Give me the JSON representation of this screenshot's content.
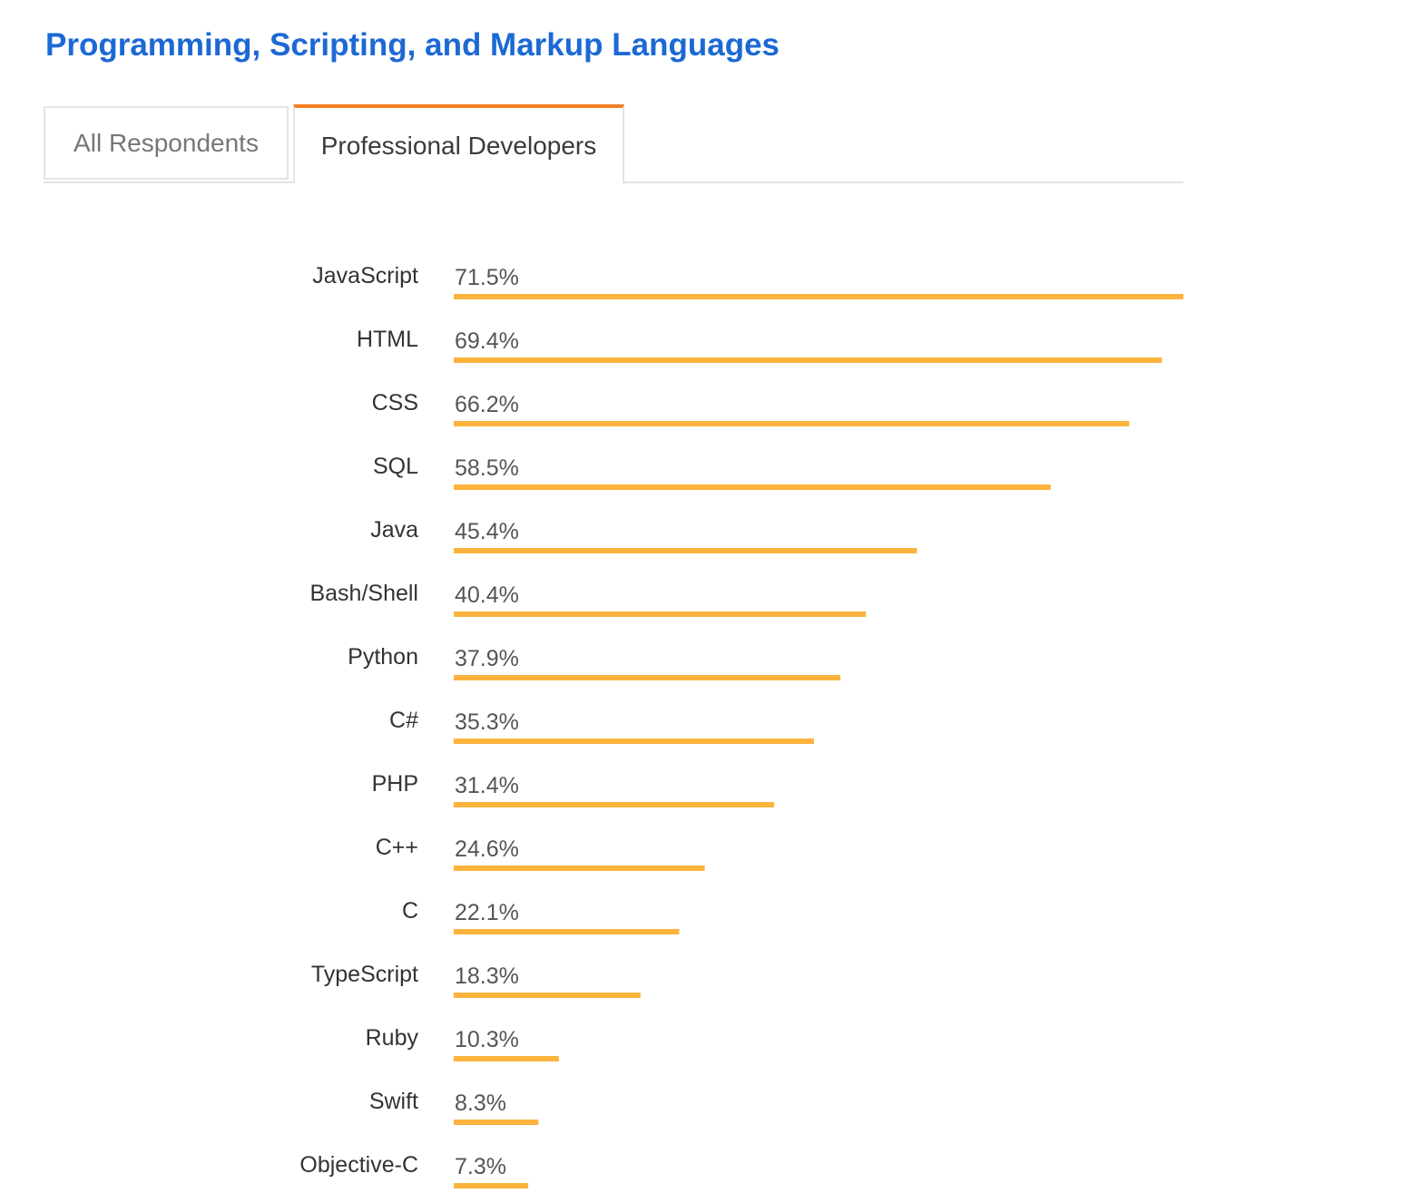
{
  "page": {
    "title": "Programming, Scripting, and Markup Languages"
  },
  "tabs": [
    {
      "label": "All Respondents",
      "active": false
    },
    {
      "label": "Professional Developers",
      "active": true
    }
  ],
  "colors": {
    "title": "#1c69d4",
    "bar": "#fbb33d",
    "tab_accent": "#f48024"
  },
  "chart_data": {
    "type": "bar",
    "orientation": "horizontal",
    "categories": [
      "JavaScript",
      "HTML",
      "CSS",
      "SQL",
      "Java",
      "Bash/Shell",
      "Python",
      "C#",
      "PHP",
      "C++",
      "C",
      "TypeScript",
      "Ruby",
      "Swift",
      "Objective-C"
    ],
    "values": [
      71.5,
      69.4,
      66.2,
      58.5,
      45.4,
      40.4,
      37.9,
      35.3,
      31.4,
      24.6,
      22.1,
      18.3,
      10.3,
      8.3,
      7.3
    ],
    "value_labels": [
      "71.5%",
      "69.4%",
      "66.2%",
      "58.5%",
      "45.4%",
      "40.4%",
      "37.9%",
      "35.3%",
      "31.4%",
      "24.6%",
      "22.1%",
      "18.3%",
      "10.3%",
      "8.3%",
      "7.3%"
    ],
    "unit": "%",
    "xlim": [
      0,
      71.5
    ],
    "grid": false,
    "legend": "none"
  }
}
